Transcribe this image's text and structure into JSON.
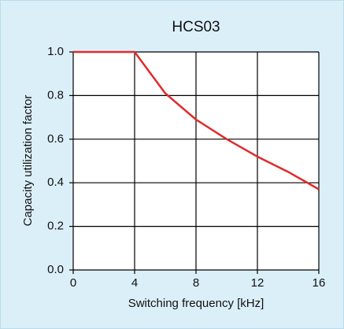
{
  "chart_data": {
    "type": "line",
    "title": "HCS03",
    "x_label": "Switching frequency [kHz]",
    "y_label": "Capacity utilization factor",
    "x": [
      0,
      4,
      6,
      8,
      10,
      12,
      14,
      16
    ],
    "series": [
      {
        "name": "HCS03",
        "color": "#e02a2a",
        "values": [
          1.0,
          1.0,
          0.81,
          0.69,
          0.6,
          0.52,
          0.45,
          0.37
        ]
      }
    ],
    "xlim": [
      0,
      16
    ],
    "xticks": [
      0,
      4,
      8,
      12,
      16
    ],
    "ylim": [
      0,
      1
    ],
    "yticks": [
      {
        "value": 0,
        "label": "0.0"
      },
      0.2,
      0.4,
      0.6,
      0.8,
      {
        "value": 1,
        "label": "1.0"
      }
    ],
    "grid": true
  }
}
